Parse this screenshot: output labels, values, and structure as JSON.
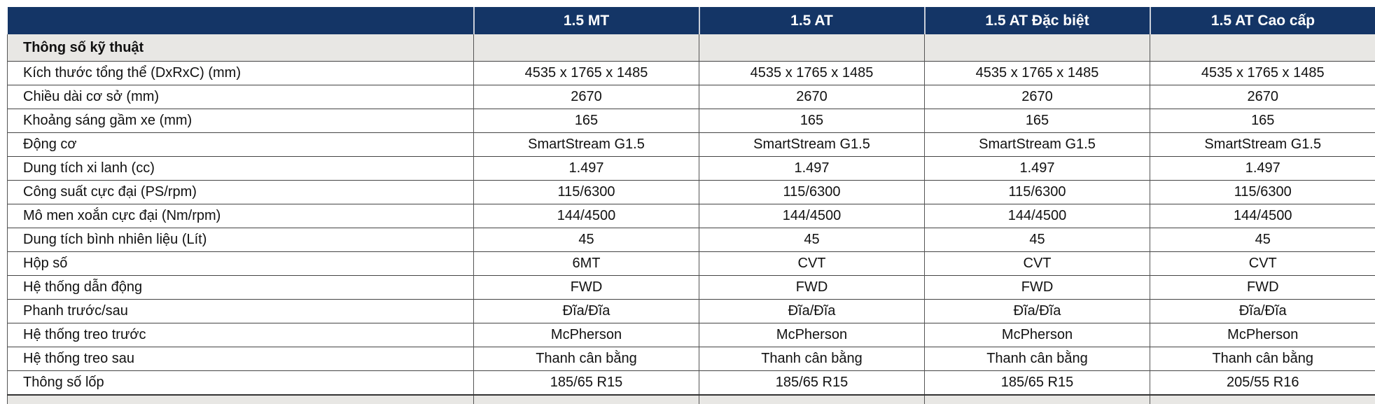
{
  "header": {
    "columns": [
      "",
      "1.5 MT",
      "1.5 AT",
      "1.5 AT Đặc biệt",
      "1.5 AT Cao cấp"
    ]
  },
  "section_title": "Thông số kỹ thuật",
  "rows": [
    {
      "label": "Kích thước tổng thể (DxRxC) (mm)",
      "values": [
        "4535 x 1765 x 1485",
        "4535 x 1765 x 1485",
        "4535 x 1765 x 1485",
        "4535 x 1765 x 1485"
      ]
    },
    {
      "label": "Chiều dài cơ sở (mm)",
      "values": [
        "2670",
        "2670",
        "2670",
        "2670"
      ]
    },
    {
      "label": "Khoảng sáng gầm xe (mm)",
      "values": [
        "165",
        "165",
        "165",
        "165"
      ]
    },
    {
      "label": "Động cơ",
      "values": [
        "SmartStream G1.5",
        "SmartStream G1.5",
        "SmartStream G1.5",
        "SmartStream G1.5"
      ]
    },
    {
      "label": "Dung tích xi lanh (cc)",
      "values": [
        "1.497",
        "1.497",
        "1.497",
        "1.497"
      ]
    },
    {
      "label": "Công suất cực đại (PS/rpm)",
      "values": [
        "115/6300",
        "115/6300",
        "115/6300",
        "115/6300"
      ]
    },
    {
      "label": "Mô men xoắn cực đại (Nm/rpm)",
      "values": [
        "144/4500",
        "144/4500",
        "144/4500",
        "144/4500"
      ]
    },
    {
      "label": "Dung tích bình nhiên liệu (Lít)",
      "values": [
        "45",
        "45",
        "45",
        "45"
      ]
    },
    {
      "label": "Hộp số",
      "values": [
        "6MT",
        "CVT",
        "CVT",
        "CVT"
      ]
    },
    {
      "label": "Hệ thống dẫn động",
      "values": [
        "FWD",
        "FWD",
        "FWD",
        "FWD"
      ]
    },
    {
      "label": "Phanh trước/sau",
      "values": [
        "Đĩa/Đĩa",
        "Đĩa/Đĩa",
        "Đĩa/Đĩa",
        "Đĩa/Đĩa"
      ]
    },
    {
      "label": "Hệ thống treo trước",
      "values": [
        "McPherson",
        "McPherson",
        "McPherson",
        "McPherson"
      ]
    },
    {
      "label": "Hệ thống treo sau",
      "values": [
        "Thanh cân bằng",
        "Thanh cân bằng",
        "Thanh cân bằng",
        "Thanh cân bằng"
      ]
    },
    {
      "label": "Thông số lốp",
      "values": [
        "185/65 R15",
        "185/65 R15",
        "185/65 R15",
        "205/55 R16"
      ]
    }
  ],
  "colors": {
    "header_bg": "#143566",
    "section_bg": "#e8e7e4"
  }
}
